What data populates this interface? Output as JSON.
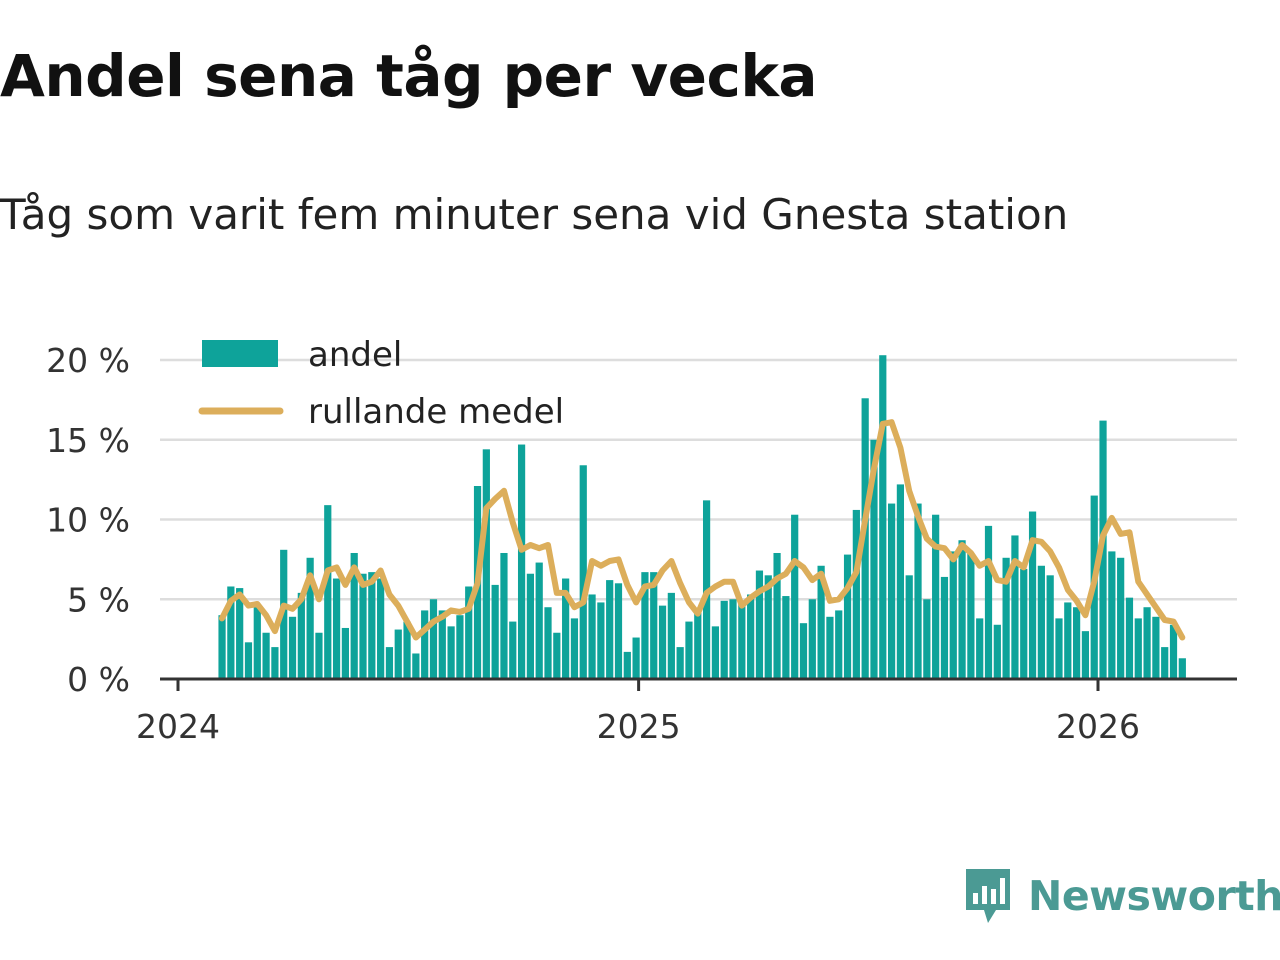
{
  "title": "Andel sena tåg per vecka",
  "subtitle": "Tåg som varit fem minuter sena vid Gnesta station",
  "brand": {
    "name": "Newsworthy",
    "color": "#4b9a94"
  },
  "colors": {
    "bar": "#0ea39a",
    "line": "#dcae5b",
    "grid": "#dddddd",
    "axis": "#333333"
  },
  "legend": {
    "bar_label": "andel",
    "line_label": "rullande medel",
    "placement": "top-left"
  },
  "chart_data": {
    "type": "bar",
    "title": "Andel sena tåg per vecka",
    "subtitle": "Tåg som varit fem minuter sena vid Gnesta station",
    "xlabel": "",
    "ylabel": "",
    "ylim": [
      0,
      20
    ],
    "yticks": [
      0,
      5,
      10,
      15,
      20
    ],
    "ytick_labels": [
      "0 %",
      "5 %",
      "10 %",
      "15 %",
      "20 %"
    ],
    "xlim": [
      "2024-01-01",
      "2026-04-15"
    ],
    "xticks": [
      "2024-01-01",
      "2025-01-01",
      "2026-01-01"
    ],
    "xtick_labels": [
      "2024",
      "2025",
      "2026"
    ],
    "grid": true,
    "start_week": "2024-02-05",
    "series": [
      {
        "name": "andel",
        "type": "bar",
        "values": [
          4.0,
          5.8,
          5.7,
          2.3,
          4.5,
          2.9,
          2.0,
          8.1,
          3.9,
          5.4,
          7.6,
          2.9,
          10.9,
          6.3,
          3.2,
          7.9,
          6.6,
          6.7,
          6.3,
          2.0,
          3.1,
          3.6,
          1.6,
          4.3,
          5.0,
          4.3,
          3.3,
          4.0,
          5.8,
          12.1,
          14.4,
          5.9,
          7.9,
          3.6,
          14.7,
          6.6,
          7.3,
          4.5,
          2.9,
          6.3,
          3.8,
          13.4,
          5.3,
          4.8,
          6.2,
          6.0,
          1.7,
          2.6,
          6.7,
          6.7,
          4.6,
          5.4,
          2.0,
          3.6,
          4.4,
          11.2,
          3.3,
          4.9,
          5.0,
          4.7,
          5.3,
          6.8,
          6.5,
          7.9,
          5.2,
          10.3,
          3.5,
          5.0,
          7.1,
          3.9,
          4.3,
          7.8,
          10.6,
          17.6,
          15.0,
          20.3,
          11.0,
          12.2,
          6.5,
          11.0,
          5.0,
          10.3,
          6.4,
          8.0,
          8.7,
          7.9,
          3.8,
          9.6,
          3.4,
          7.6,
          9.0,
          6.9,
          10.5,
          7.1,
          6.5,
          3.8,
          4.8,
          4.5,
          3.0,
          11.5,
          16.2,
          8.0,
          7.6,
          5.1,
          3.8,
          4.5,
          3.9,
          2.0,
          3.4,
          1.3
        ]
      },
      {
        "name": "rullande medel",
        "type": "line",
        "values": [
          3.8,
          4.9,
          5.3,
          4.6,
          4.7,
          4.0,
          3.0,
          4.6,
          4.4,
          5.0,
          6.5,
          5.0,
          6.8,
          7.0,
          5.9,
          7.0,
          5.9,
          6.1,
          6.8,
          5.3,
          4.6,
          3.6,
          2.6,
          3.1,
          3.6,
          3.9,
          4.3,
          4.2,
          4.4,
          6.0,
          10.7,
          11.3,
          11.8,
          9.8,
          8.1,
          8.4,
          8.2,
          8.4,
          5.4,
          5.4,
          4.5,
          4.8,
          7.4,
          7.1,
          7.4,
          7.5,
          5.9,
          4.8,
          5.8,
          5.9,
          6.8,
          7.4,
          6.0,
          4.8,
          4.1,
          5.4,
          5.8,
          6.1,
          6.1,
          4.6,
          5.1,
          5.5,
          5.8,
          6.3,
          6.6,
          7.4,
          7.0,
          6.2,
          6.6,
          4.9,
          5.0,
          5.7,
          6.7,
          10.0,
          13.2,
          16.0,
          16.1,
          14.5,
          11.8,
          10.2,
          8.8,
          8.3,
          8.2,
          7.5,
          8.4,
          7.9,
          7.1,
          7.4,
          6.2,
          6.1,
          7.4,
          7.0,
          8.7,
          8.6,
          8.0,
          7.0,
          5.6,
          4.9,
          4.0,
          6.1,
          9.0,
          10.1,
          9.1,
          9.2,
          6.1,
          5.3,
          4.5,
          3.7,
          3.6,
          2.6
        ]
      }
    ]
  }
}
